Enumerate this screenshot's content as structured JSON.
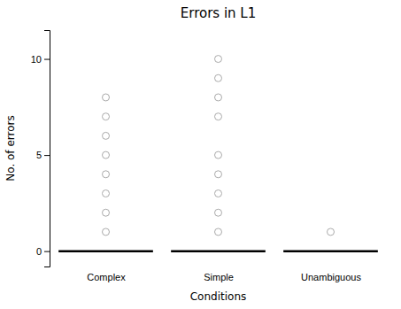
{
  "chart_data": {
    "type": "strip",
    "title": "Errors in L1",
    "x_label": "Conditions",
    "y_label": "No. of errors",
    "categories": [
      "Complex",
      "Simple",
      "Unambiguous"
    ],
    "values": [
      [
        1,
        2,
        3,
        4,
        5,
        6,
        7,
        8
      ],
      [
        1,
        2,
        3,
        4,
        5,
        7,
        8,
        9,
        10
      ],
      [
        1
      ]
    ],
    "baseline": 0,
    "ylim": [
      -0.8,
      11.5
    ],
    "yticks": [
      0,
      5,
      10
    ],
    "color": "#aaaaaa",
    "marker": "circle",
    "grid": false
  }
}
